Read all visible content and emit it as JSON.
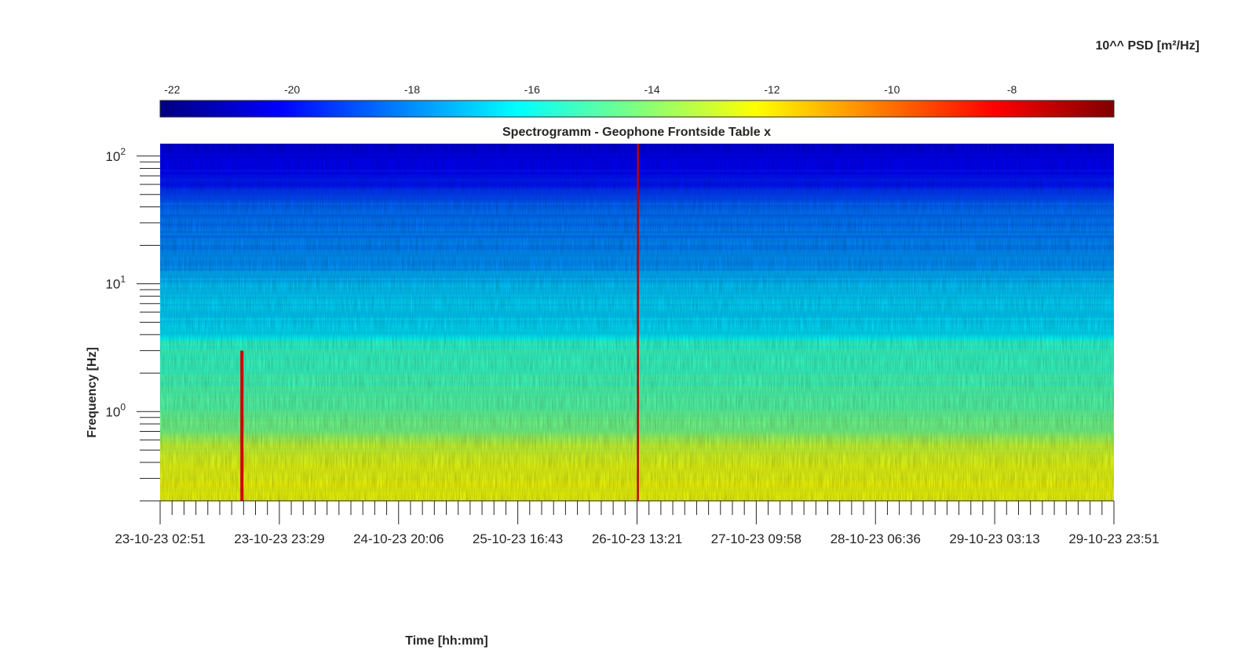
{
  "chart_data": {
    "type": "heatmap",
    "title": "Spectrogramm - Geophone Frontside Table x",
    "xlabel": "Time [hh:mm]",
    "ylabel": "Frequency [Hz]",
    "y_scale": "log",
    "ylim": [
      0.2,
      125
    ],
    "x_ticks": [
      "23-10-23 02:51",
      "23-10-23 23:29",
      "24-10-23 20:06",
      "25-10-23 16:43",
      "26-10-23 13:21",
      "27-10-23 09:58",
      "28-10-23 06:36",
      "29-10-23 03:13",
      "29-10-23 23:51"
    ],
    "y_ticks": [
      {
        "base": "10",
        "exp": "0",
        "value": 1
      },
      {
        "base": "10",
        "exp": "1",
        "value": 10
      },
      {
        "base": "10",
        "exp": "2",
        "value": 100
      }
    ],
    "colorbar": {
      "label": "10^^ PSD [m²/Hz]",
      "colormap": "jet",
      "range": [
        -22.2,
        -6.3
      ],
      "ticks": [
        "-22",
        "-20",
        "-18",
        "-16",
        "-14",
        "-12",
        "-10",
        "-8"
      ],
      "tick_values": [
        -22,
        -20,
        -18,
        -16,
        -14,
        -12,
        -10,
        -8
      ]
    },
    "psd_profile": [
      {
        "freq": 0.2,
        "log_psd": -12.4
      },
      {
        "freq": 0.4,
        "log_psd": -12.6
      },
      {
        "freq": 0.55,
        "log_psd": -13.2
      },
      {
        "freq": 0.7,
        "log_psd": -14.2
      },
      {
        "freq": 1.0,
        "log_psd": -14.8
      },
      {
        "freq": 2.0,
        "log_psd": -15.3
      },
      {
        "freq": 3.5,
        "log_psd": -15.6
      },
      {
        "freq": 4.0,
        "log_psd": -16.6
      },
      {
        "freq": 10,
        "log_psd": -17.2
      },
      {
        "freq": 15,
        "log_psd": -18.0
      },
      {
        "freq": 40,
        "log_psd": -18.5
      },
      {
        "freq": 60,
        "log_psd": -19.8
      },
      {
        "freq": 125,
        "log_psd": -20.6
      }
    ],
    "events": [
      {
        "time": "23-10-23 17:00",
        "freq_max": 3.0,
        "log_psd": -7.5
      },
      {
        "time": "26-10-23 13:30",
        "freq_max": 125,
        "log_psd": -7.3
      }
    ]
  }
}
